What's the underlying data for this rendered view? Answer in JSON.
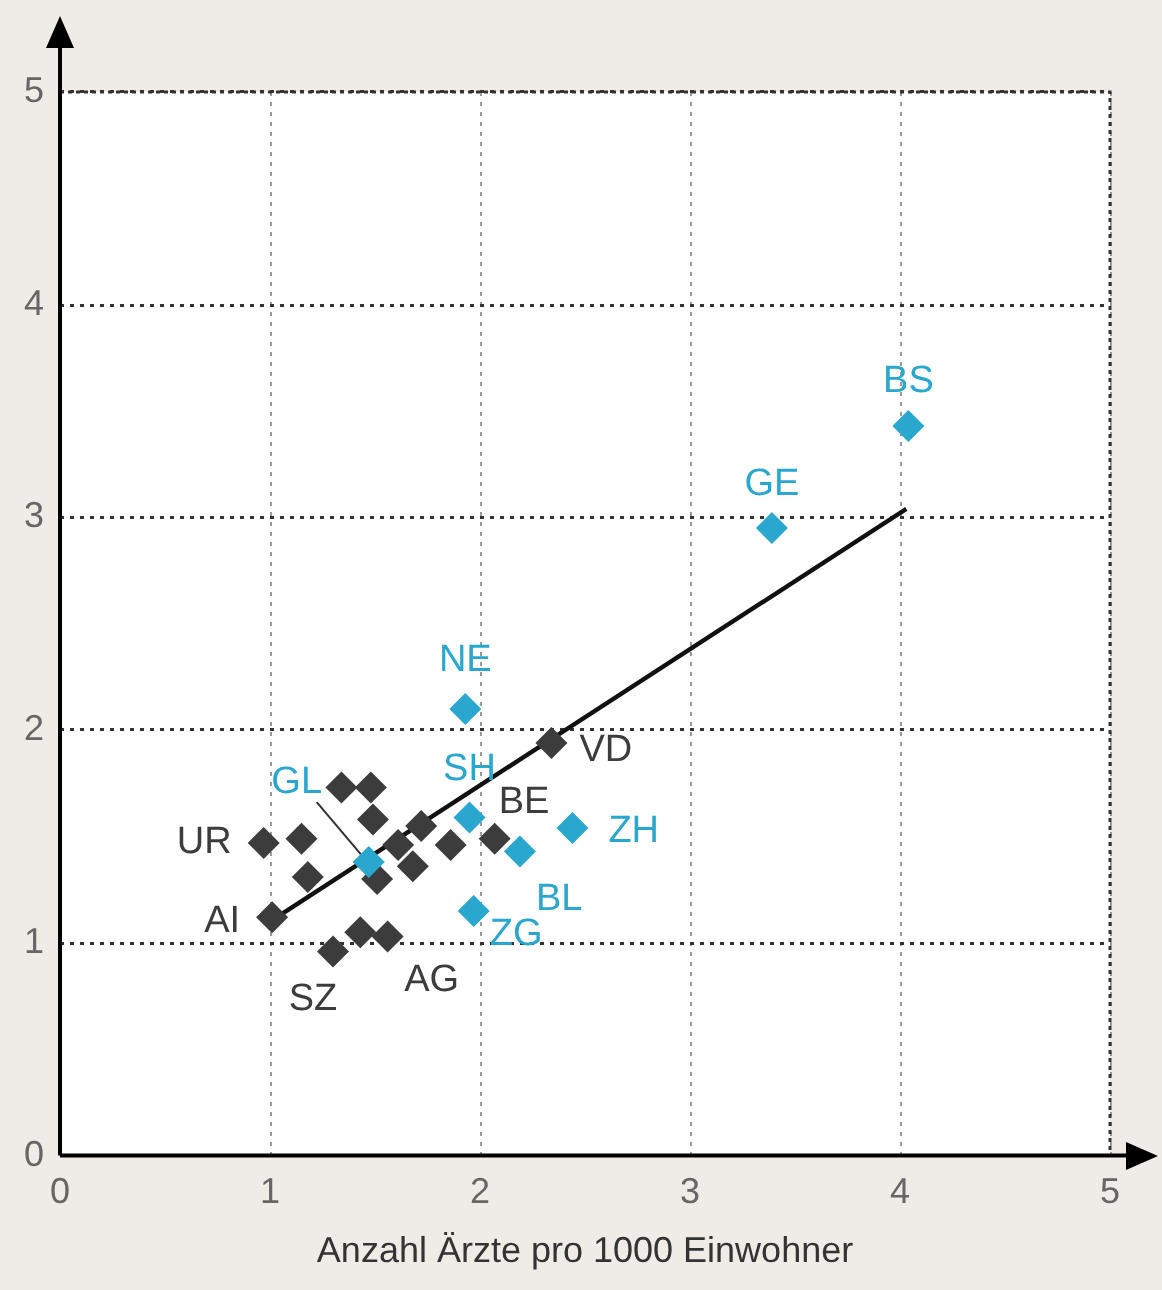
{
  "chart_data": {
    "type": "scatter",
    "xlabel": "Anzahl Ärzte pro 1000 Einwohner",
    "xlim": [
      0,
      5
    ],
    "ylim": [
      0,
      5
    ],
    "xticks": [
      0,
      1,
      2,
      3,
      4,
      5
    ],
    "yticks": [
      0,
      1,
      2,
      3,
      4,
      5
    ],
    "grid": true,
    "legend": false,
    "marker": "diamond",
    "series": [
      {
        "type": "scatter",
        "color": "#2aa7cf",
        "x": [
          4.04,
          3.39,
          1.93,
          1.95,
          2.44,
          2.19,
          1.97,
          1.47
        ],
        "values": [
          3.43,
          2.95,
          2.1,
          1.59,
          1.54,
          1.43,
          1.15,
          1.38
        ]
      },
      {
        "type": "scatter",
        "color": "#3c3c3c",
        "x": [
          2.34,
          2.07,
          1.01,
          0.97,
          1.15,
          1.18,
          1.34,
          1.48,
          1.49,
          1.61,
          1.72,
          1.86,
          1.68,
          1.51,
          1.3,
          1.43,
          1.56
        ],
        "values": [
          1.94,
          1.49,
          1.12,
          1.47,
          1.49,
          1.31,
          1.73,
          1.73,
          1.58,
          1.46,
          1.55,
          1.46,
          1.36,
          1.3,
          0.96,
          1.05,
          1.03
        ]
      },
      {
        "type": "line",
        "color": "#111111",
        "x": [
          1.0,
          4.03
        ],
        "values": [
          1.1,
          3.04
        ],
        "line_style": "solid",
        "marker": "none"
      }
    ],
    "annotations": [
      {
        "text": "BS",
        "x": 4.04,
        "y": 3.43
      },
      {
        "text": "GE",
        "x": 3.39,
        "y": 2.95
      },
      {
        "text": "NE",
        "x": 1.93,
        "y": 2.1
      },
      {
        "text": "SH",
        "x": 1.95,
        "y": 1.59
      },
      {
        "text": "ZH",
        "x": 2.44,
        "y": 1.54
      },
      {
        "text": "BL",
        "x": 2.19,
        "y": 1.43
      },
      {
        "text": "ZG",
        "x": 1.97,
        "y": 1.15
      },
      {
        "text": "GL",
        "x": 1.47,
        "y": 1.38
      },
      {
        "text": "VD",
        "x": 2.34,
        "y": 1.94
      },
      {
        "text": "BE",
        "x": 2.07,
        "y": 1.49
      },
      {
        "text": "AI",
        "x": 1.01,
        "y": 1.12
      },
      {
        "text": "UR",
        "x": 0.97,
        "y": 1.47
      },
      {
        "text": "SZ",
        "x": 1.3,
        "y": 0.96
      },
      {
        "text": "AG",
        "x": 1.56,
        "y": 1.03
      }
    ]
  }
}
